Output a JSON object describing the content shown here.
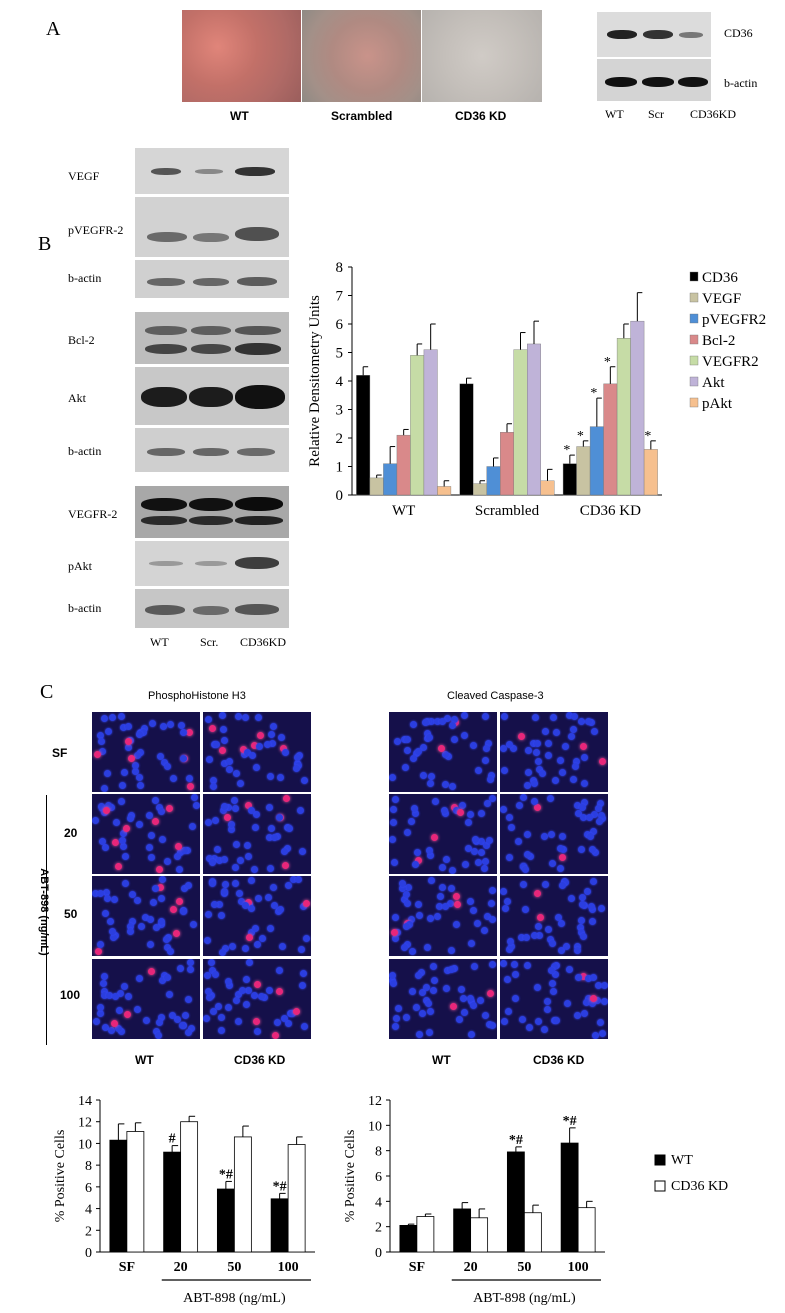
{
  "panel_a": {
    "label": "A",
    "micro_labels": [
      "WT",
      "Scrambled",
      "CD36 KD"
    ],
    "blot_labels": [
      "CD36",
      "b-actin"
    ],
    "blot_lanes": [
      "WT",
      "Scr",
      "CD36KD"
    ]
  },
  "panel_b": {
    "label": "B",
    "blot_labels": [
      "VEGF",
      "pVEGFR-2",
      "b-actin",
      "Bcl-2",
      "Akt",
      "b-actin",
      "VEGFR-2",
      "pAkt",
      "b-actin"
    ],
    "lanes": [
      "WT",
      "Scr.",
      "CD36KD"
    ]
  },
  "panel_c": {
    "label": "C",
    "col_title_left": "PhosphoHistone H3",
    "col_title_right": "Cleaved Caspase-3",
    "row_labels": [
      "SF",
      "20",
      "50",
      "100"
    ],
    "axis_title": "ABT-898 (ng/mL)",
    "col_labels": [
      "WT",
      "CD36 KD"
    ]
  },
  "chart_data": [
    {
      "type": "bar",
      "categories": [
        "WT",
        "Scrambled",
        "CD36 KD"
      ],
      "ylabel": "Relative Densitometry Units",
      "ylim": [
        0,
        8
      ],
      "yticks": [
        "0",
        "1",
        "2",
        "3",
        "4",
        "5",
        "6",
        "7",
        "8"
      ],
      "legend_position": "right",
      "series": [
        {
          "name": "CD36",
          "color": "#000000",
          "values": [
            4.2,
            3.9,
            1.1
          ],
          "errors": [
            0.3,
            0.2,
            0.3
          ]
        },
        {
          "name": "VEGF",
          "color": "#c8c3a2",
          "values": [
            0.6,
            0.4,
            1.7
          ],
          "errors": [
            0.1,
            0.1,
            0.2
          ]
        },
        {
          "name": "pVEGFR2",
          "color": "#4f8fd6",
          "values": [
            1.1,
            1.0,
            2.4
          ],
          "errors": [
            0.6,
            0.3,
            1.0
          ]
        },
        {
          "name": "Bcl-2",
          "color": "#d9898a",
          "values": [
            2.1,
            2.2,
            3.9
          ],
          "errors": [
            0.2,
            0.3,
            0.6
          ]
        },
        {
          "name": "VEGFR2",
          "color": "#c6dca6",
          "values": [
            4.9,
            5.1,
            5.5
          ],
          "errors": [
            0.4,
            0.6,
            0.5
          ]
        },
        {
          "name": "Akt",
          "color": "#bfb3d8",
          "values": [
            5.1,
            5.3,
            6.1
          ],
          "errors": [
            0.9,
            0.8,
            1.0
          ]
        },
        {
          "name": "pAkt",
          "color": "#f6c08f",
          "values": [
            0.3,
            0.5,
            1.6
          ],
          "errors": [
            0.2,
            0.4,
            0.3
          ]
        }
      ],
      "annotations": [
        {
          "category": "CD36 KD",
          "series": "CD36",
          "text": "*"
        },
        {
          "category": "CD36 KD",
          "series": "VEGF",
          "text": "*"
        },
        {
          "category": "CD36 KD",
          "series": "pVEGFR2",
          "text": "*"
        },
        {
          "category": "CD36 KD",
          "series": "Bcl-2",
          "text": "*"
        },
        {
          "category": "CD36 KD",
          "series": "pAkt",
          "text": "*"
        }
      ]
    },
    {
      "type": "bar",
      "categories": [
        "SF",
        "20",
        "50",
        "100"
      ],
      "ylabel": "% Positive Cells",
      "xlabel": "ABT-898 (ng/mL)",
      "ylim": [
        0,
        14
      ],
      "yticks": [
        "0",
        "2",
        "4",
        "6",
        "8",
        "10",
        "12",
        "14"
      ],
      "series": [
        {
          "name": "WT",
          "color": "#000000",
          "values": [
            10.3,
            9.2,
            5.8,
            4.9
          ],
          "errors": [
            1.5,
            0.6,
            0.7,
            0.5
          ]
        },
        {
          "name": "CD36 KD",
          "color": "#ffffff",
          "values": [
            11.1,
            12.0,
            10.6,
            9.9
          ],
          "errors": [
            0.8,
            0.5,
            1.0,
            0.7
          ]
        }
      ],
      "annotations": [
        {
          "category": "20",
          "series": "WT",
          "text": "#"
        },
        {
          "category": "50",
          "series": "WT",
          "text": "*#"
        },
        {
          "category": "100",
          "series": "WT",
          "text": "*#"
        }
      ]
    },
    {
      "type": "bar",
      "categories": [
        "SF",
        "20",
        "50",
        "100"
      ],
      "ylabel": "% Positive Cells",
      "xlabel": "ABT-898 (ng/mL)",
      "ylim": [
        0,
        12
      ],
      "yticks": [
        "0",
        "2",
        "4",
        "6",
        "8",
        "10",
        "12"
      ],
      "legend_position": "right",
      "series": [
        {
          "name": "WT",
          "color": "#000000",
          "values": [
            2.1,
            3.4,
            7.9,
            8.6
          ],
          "errors": [
            0.1,
            0.5,
            0.4,
            1.2
          ]
        },
        {
          "name": "CD36 KD",
          "color": "#ffffff",
          "values": [
            2.8,
            2.7,
            3.1,
            3.5
          ],
          "errors": [
            0.2,
            0.7,
            0.6,
            0.5
          ]
        }
      ],
      "annotations": [
        {
          "category": "50",
          "series": "WT",
          "text": "*#"
        },
        {
          "category": "100",
          "series": "WT",
          "text": "*#"
        }
      ]
    }
  ]
}
